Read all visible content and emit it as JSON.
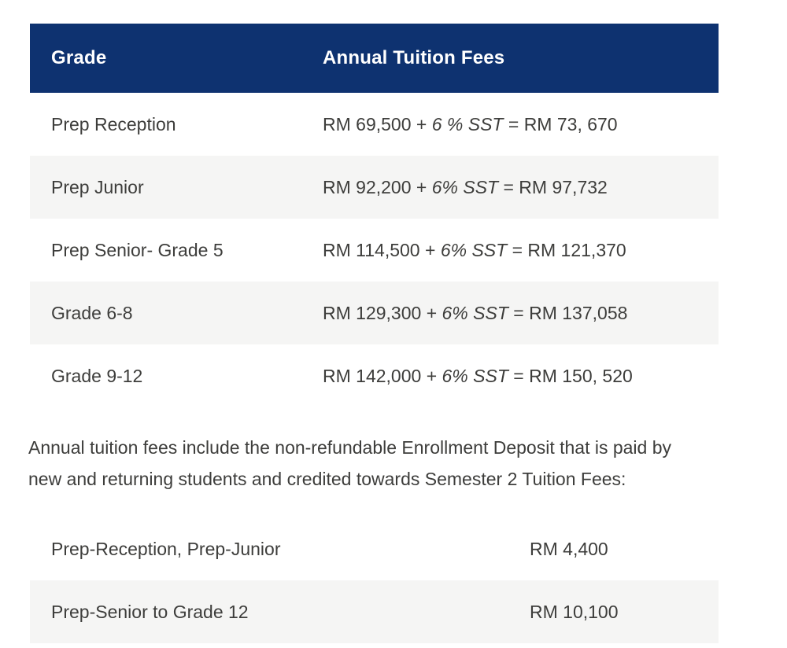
{
  "colors": {
    "header_bg": "#0e3270",
    "row_alt_bg": "#f5f5f4",
    "text": "#3d3d3b"
  },
  "tuition_table": {
    "headers": {
      "grade": "Grade",
      "fees": "Annual Tuition Fees"
    },
    "rows": [
      {
        "grade": "Prep Reception",
        "fee_base": "RM 69,500 + ",
        "fee_sst": "6 % SST",
        "fee_total": " = RM 73, 670"
      },
      {
        "grade": "Prep Junior",
        "fee_base": "RM 92,200 + ",
        "fee_sst": "6% SST",
        "fee_total": " = RM 97,732"
      },
      {
        "grade": "Prep Senior- Grade 5",
        "fee_base": "RM 114,500 + ",
        "fee_sst": "6% SST",
        "fee_total": " = RM 121,370"
      },
      {
        "grade": "Grade 6-8",
        "fee_base": "RM 129,300 + ",
        "fee_sst": "6% SST",
        "fee_total": " = RM 137,058"
      },
      {
        "grade": "Grade 9-12",
        "fee_base": "RM 142,000 + ",
        "fee_sst": "6% SST",
        "fee_total": " = RM 150, 520"
      }
    ]
  },
  "note": {
    "line1": "Annual tuition fees include the non-refundable Enrollment Deposit that is paid by",
    "line2": "new and returning students and credited towards Semester 2 Tuition Fees:"
  },
  "deposit_table": {
    "rows": [
      {
        "label": "Prep-Reception, Prep-Junior",
        "amount": "RM 4,400"
      },
      {
        "label": "Prep-Senior to Grade 12",
        "amount": "RM 10,100"
      }
    ]
  }
}
